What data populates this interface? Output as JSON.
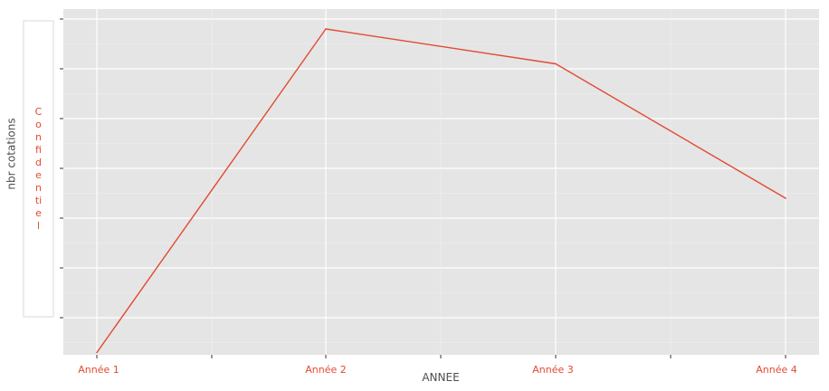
{
  "chart_data": {
    "type": "line",
    "title": "",
    "xlabel": "ANNEE",
    "ylabel": "nbr cotations",
    "categories": [
      "Année 1",
      "Année 2",
      "Année 3",
      "Année 4"
    ],
    "series": [
      {
        "values": [
          0.3,
          6.8,
          6.1,
          3.4
        ]
      }
    ],
    "ylim": [
      0,
      7.0
    ],
    "y_tick_labels_redacted_text": "Confidentiel",
    "grid": true,
    "background_color": "#e5e5e5",
    "grid_color": "#ffffff",
    "line_color": "#e24a33",
    "tick_label_color": "#e24a33"
  }
}
